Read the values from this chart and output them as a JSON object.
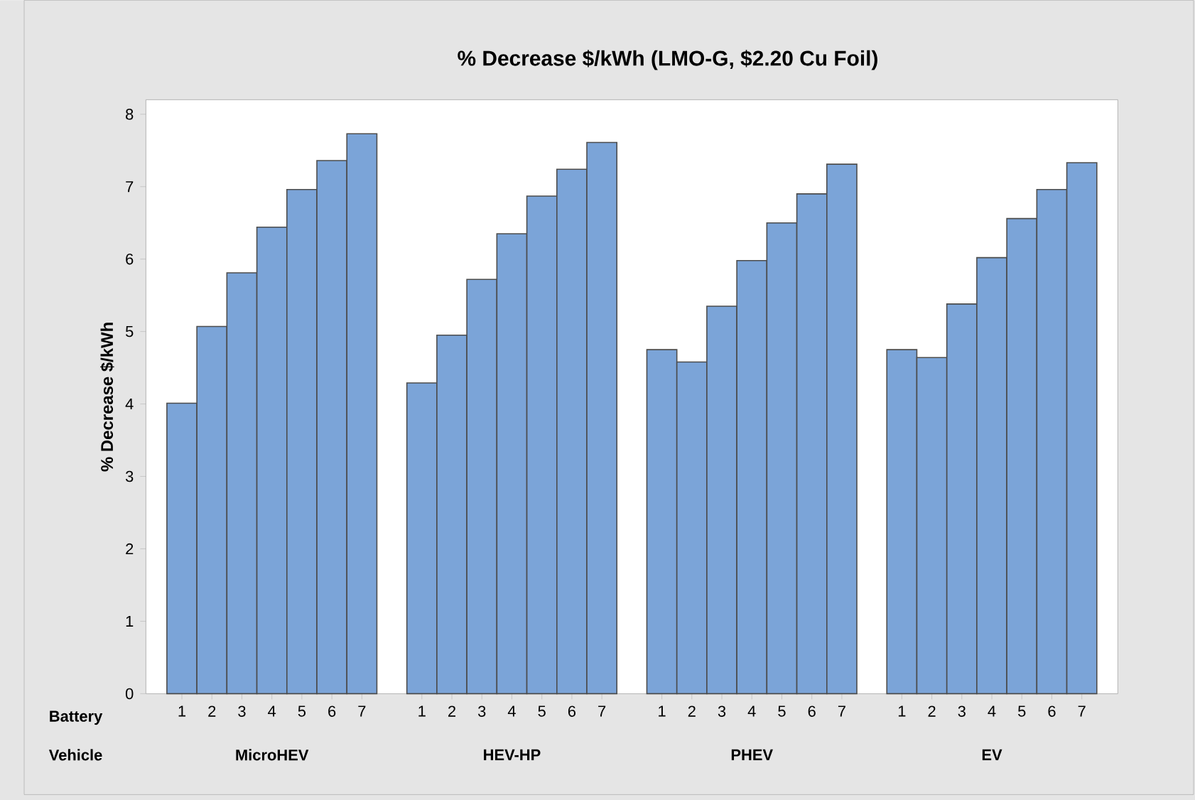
{
  "chart_data": {
    "type": "bar",
    "title": "% Decrease $/kWh (LMO-G, $2.20 Cu Foil)",
    "ylabel": "% Decrease $/kWh",
    "categories": [
      "1",
      "2",
      "3",
      "4",
      "5",
      "6",
      "7",
      null,
      "1",
      "2",
      "3",
      "4",
      "5",
      "6",
      "7",
      null,
      "1",
      "2",
      "3",
      "4",
      "5",
      "6",
      "7",
      null,
      "1",
      "2",
      "3",
      "4",
      "5",
      "6",
      "7"
    ],
    "values": [
      4.01,
      5.07,
      5.81,
      6.44,
      6.96,
      7.36,
      7.73,
      null,
      4.29,
      4.95,
      5.72,
      6.35,
      6.87,
      7.24,
      7.61,
      null,
      4.75,
      4.58,
      5.35,
      5.98,
      6.5,
      6.9,
      7.31,
      null,
      4.75,
      4.64,
      5.38,
      6.02,
      6.56,
      6.96,
      7.33
    ],
    "color": "#7ba4d8",
    "ylim": [
      0,
      8.2
    ],
    "yticks": [
      0,
      1,
      2,
      3,
      4,
      5,
      6,
      7,
      8
    ],
    "annotations": [
      "Battery",
      "Vehicle",
      "MicroHEV",
      "HEV-HP",
      "PHEV",
      "EV"
    ]
  }
}
